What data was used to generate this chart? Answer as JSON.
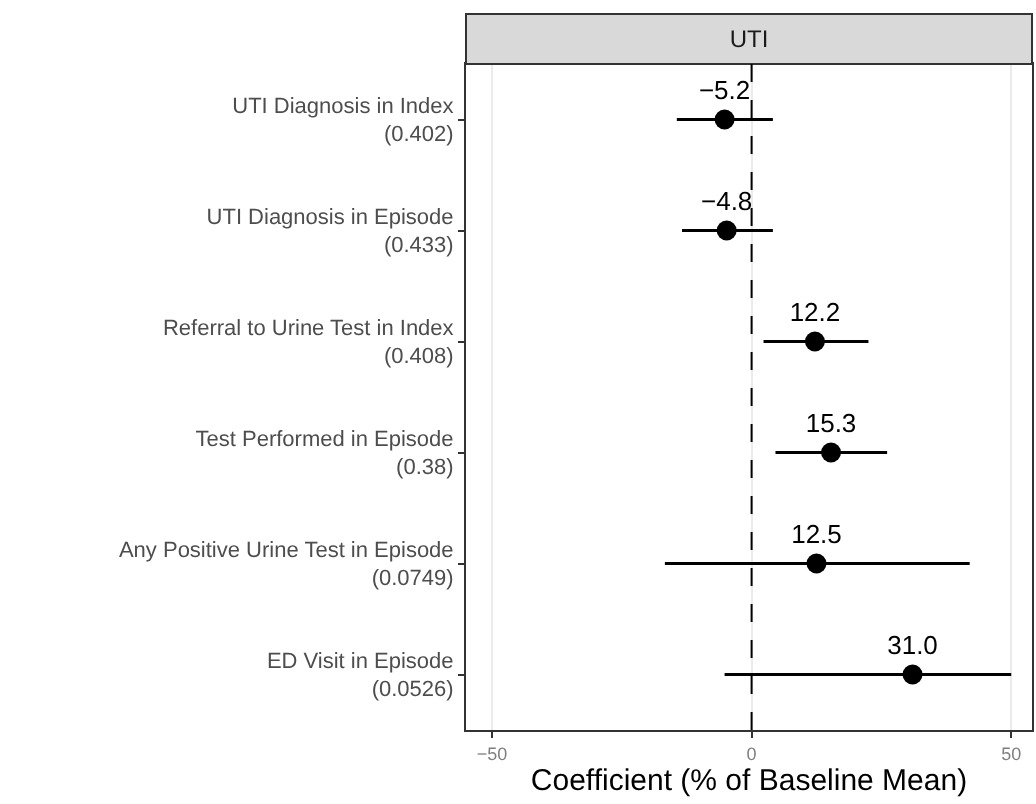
{
  "chart_data": {
    "type": "scatter",
    "orientation": "horizontal",
    "title": "UTI",
    "xlabel": "Coefficient (% of Baseline Mean)",
    "categories": [
      "UTI Diagnosis in Index\n(0.402)",
      "UTI Diagnosis in Episode\n(0.433)",
      "Referral to Urine Test in Index\n(0.408)",
      "Test Performed in Episode\n(0.38)",
      "Any Positive Urine Test in Episode\n(0.0749)",
      "ED Visit in Episode\n(0.0526)"
    ],
    "values": [
      -5.2,
      -4.8,
      12.2,
      15.3,
      12.5,
      31.0
    ],
    "errors": [
      [
        -14.4,
        4.1
      ],
      [
        -13.4,
        4.1
      ],
      [
        2.3,
        22.5
      ],
      [
        4.6,
        26.1
      ],
      [
        -16.7,
        42
      ],
      [
        -5.2,
        50
      ]
    ],
    "color": "#000000",
    "marker": "circle",
    "value_labels": [
      "−5.2",
      "−4.8",
      "12.2",
      "15.3",
      "12.5",
      "31.0"
    ],
    "xlim": [
      -55,
      54
    ],
    "xticks": [
      -50,
      0,
      50
    ],
    "grid": "x",
    "ref_lines": [
      {
        "axis": "x",
        "value": 0,
        "line_style": "dashed",
        "color": "#000000"
      }
    ]
  }
}
